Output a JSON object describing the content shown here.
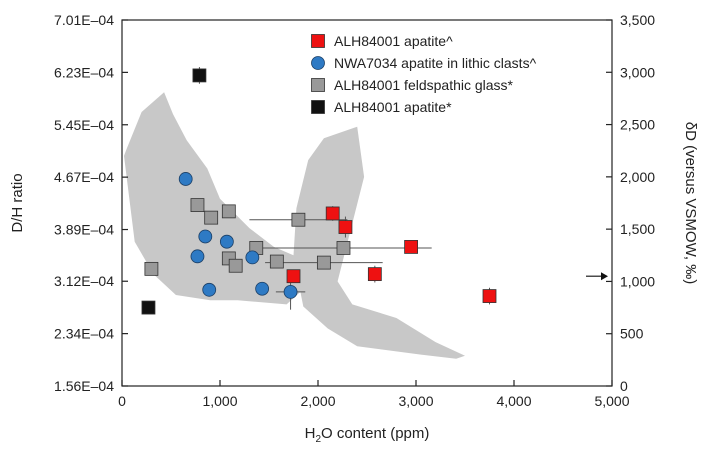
{
  "chart_data": {
    "type": "scatter",
    "x_axis": {
      "label_main": "H",
      "label_sub": "2",
      "label_rest": "O content (ppm)",
      "range": [
        0,
        5000
      ],
      "ticks": [
        0,
        1000,
        2000,
        3000,
        4000,
        5000
      ],
      "tick_labels": [
        "0",
        "1,000",
        "2,000",
        "3,000",
        "4,000",
        "5,000"
      ]
    },
    "y_left": {
      "label": "D/H ratio",
      "range": [
        0.000156,
        0.000701
      ],
      "ticks": [
        0.000156,
        0.000234,
        0.000312,
        0.000389,
        0.000467,
        0.000545,
        0.000623,
        0.000701
      ],
      "tick_labels": [
        "1.56E–04",
        "2.34E–04",
        "3.12E–04",
        "3.89E–04",
        "4.67E–04",
        "5.45E–04",
        "6.23E–04",
        "7.01E–04"
      ]
    },
    "y_right": {
      "label": "δD (versus VSMOW, ‰)",
      "range": [
        0,
        3500
      ],
      "ticks": [
        0,
        500,
        1000,
        1500,
        2000,
        2500,
        3000,
        3500
      ],
      "tick_labels": [
        "0",
        "500",
        "1,000",
        "1,500",
        "2,000",
        "2,500",
        "3,000",
        "3,500"
      ]
    },
    "grid": false,
    "legend_position": "top-right",
    "series": [
      {
        "name": "ALH84001 apatite^",
        "marker": "square",
        "color": "#ee1111",
        "points": [
          {
            "x": 1750,
            "y": 1050,
            "xerr": 0,
            "yerr": 40
          },
          {
            "x": 2150,
            "y": 1650,
            "xerr": 0,
            "yerr": 70
          },
          {
            "x": 2280,
            "y": 1520,
            "xerr": 0,
            "yerr": 100
          },
          {
            "x": 2950,
            "y": 1330,
            "xerr": 0,
            "yerr": 40
          },
          {
            "x": 2580,
            "y": 1070,
            "xerr": 0,
            "yerr": 80
          },
          {
            "x": 3750,
            "y": 860,
            "xerr": 0,
            "yerr": 80
          }
        ]
      },
      {
        "name": "NWA7034 apatite in lithic clasts^",
        "marker": "circle",
        "color": "#2e7ac4",
        "points": [
          {
            "x": 650,
            "y": 1980,
            "xerr": 0,
            "yerr": 0
          },
          {
            "x": 850,
            "y": 1430,
            "xerr": 0,
            "yerr": 0
          },
          {
            "x": 770,
            "y": 1240,
            "xerr": 0,
            "yerr": 0
          },
          {
            "x": 1070,
            "y": 1380,
            "xerr": 0,
            "yerr": 0
          },
          {
            "x": 1330,
            "y": 1230,
            "xerr": 0,
            "yerr": 0
          },
          {
            "x": 890,
            "y": 920,
            "xerr": 0,
            "yerr": 0
          },
          {
            "x": 1430,
            "y": 930,
            "xerr": 0,
            "yerr": 0
          },
          {
            "x": 1720,
            "y": 900,
            "xerr": 150,
            "yerr": 170
          }
        ]
      },
      {
        "name": "ALH84001 feldspathic glass*",
        "marker": "square",
        "color": "#999999",
        "points": [
          {
            "x": 770,
            "y": 1730,
            "xerr": 0,
            "yerr": 0
          },
          {
            "x": 910,
            "y": 1610,
            "xerr": 0,
            "yerr": 0
          },
          {
            "x": 1090,
            "y": 1670,
            "xerr": 0,
            "yerr": 0
          },
          {
            "x": 1800,
            "y": 1590,
            "xerr": 500,
            "yerr": 0
          },
          {
            "x": 1370,
            "y": 1320,
            "xerr": 0,
            "yerr": 0
          },
          {
            "x": 1090,
            "y": 1220,
            "xerr": 0,
            "yerr": 0
          },
          {
            "x": 1160,
            "y": 1150,
            "xerr": 0,
            "yerr": 0
          },
          {
            "x": 1580,
            "y": 1190,
            "xerr": 0,
            "yerr": 0
          },
          {
            "x": 2260,
            "y": 1320,
            "xerr": 900,
            "yerr": 0
          },
          {
            "x": 2060,
            "y": 1180,
            "xerr": 600,
            "yerr": 0
          },
          {
            "x": 300,
            "y": 1120,
            "xerr": 0,
            "yerr": 0
          }
        ]
      },
      {
        "name": "ALH84001 apatite*",
        "marker": "square",
        "color": "#111111",
        "points": [
          {
            "x": 790,
            "y": 2970,
            "xerr": 0,
            "yerr": 80
          },
          {
            "x": 270,
            "y": 750,
            "xerr": 0,
            "yerr": 0
          }
        ]
      }
    ],
    "shaded_regions": [
      {
        "color": "#c8c8c8",
        "polygon": [
          [
            40,
            2250
          ],
          [
            200,
            2620
          ],
          [
            430,
            2810
          ],
          [
            520,
            2600
          ],
          [
            660,
            2350
          ],
          [
            870,
            2080
          ],
          [
            1000,
            1790
          ],
          [
            1300,
            1510
          ],
          [
            1550,
            1330
          ],
          [
            1750,
            1250
          ],
          [
            1780,
            1700
          ],
          [
            1900,
            2160
          ],
          [
            2060,
            2370
          ],
          [
            2400,
            2480
          ],
          [
            2470,
            2000
          ],
          [
            2200,
            1000
          ],
          [
            2350,
            780
          ],
          [
            2800,
            650
          ],
          [
            3200,
            420
          ],
          [
            3500,
            290
          ],
          [
            3410,
            260
          ],
          [
            3050,
            300
          ],
          [
            2400,
            380
          ],
          [
            2100,
            550
          ],
          [
            1850,
            760
          ],
          [
            1820,
            900
          ],
          [
            1680,
            780
          ],
          [
            1180,
            820
          ],
          [
            900,
            820
          ],
          [
            550,
            870
          ],
          [
            320,
            1070
          ],
          [
            130,
            1380
          ],
          [
            20,
            2200
          ]
        ]
      }
    ],
    "arrow_marker": {
      "axis": "right",
      "y": 1050
    }
  }
}
